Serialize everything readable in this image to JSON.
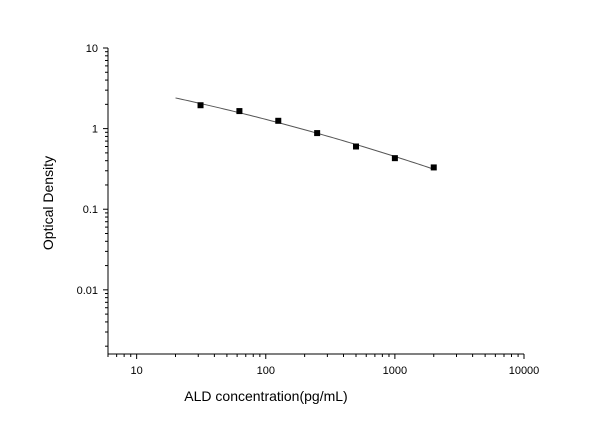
{
  "chart_data": {
    "type": "scatter",
    "title": "",
    "xlabel": "ALD concentration(pg/mL)",
    "ylabel": "Optical Density",
    "x_scale": "log",
    "y_scale": "log",
    "xlim": [
      6,
      10000
    ],
    "ylim": [
      0.0016,
      10
    ],
    "grid": false,
    "x_ticks": [
      {
        "value": 10,
        "label": "10"
      },
      {
        "value": 100,
        "label": "100"
      },
      {
        "value": 1000,
        "label": "1000"
      },
      {
        "value": 10000,
        "label": "10000"
      }
    ],
    "y_ticks": [
      {
        "value": 10,
        "label": "10"
      },
      {
        "value": 1,
        "label": "1"
      },
      {
        "value": 0.1,
        "label": "0.1"
      },
      {
        "value": 0.01,
        "label": "0.01"
      }
    ],
    "series": [
      {
        "x": [
          31.25,
          62.5,
          125,
          250,
          500,
          1000,
          2000
        ],
        "y": [
          1.95,
          1.65,
          1.25,
          0.88,
          0.6,
          0.43,
          0.33
        ]
      }
    ],
    "fit_curve": {
      "x_start": 20,
      "x_end": 2000
    },
    "colors": {
      "marker": "#000000",
      "curve": "#555555",
      "axis": "#000000"
    }
  }
}
